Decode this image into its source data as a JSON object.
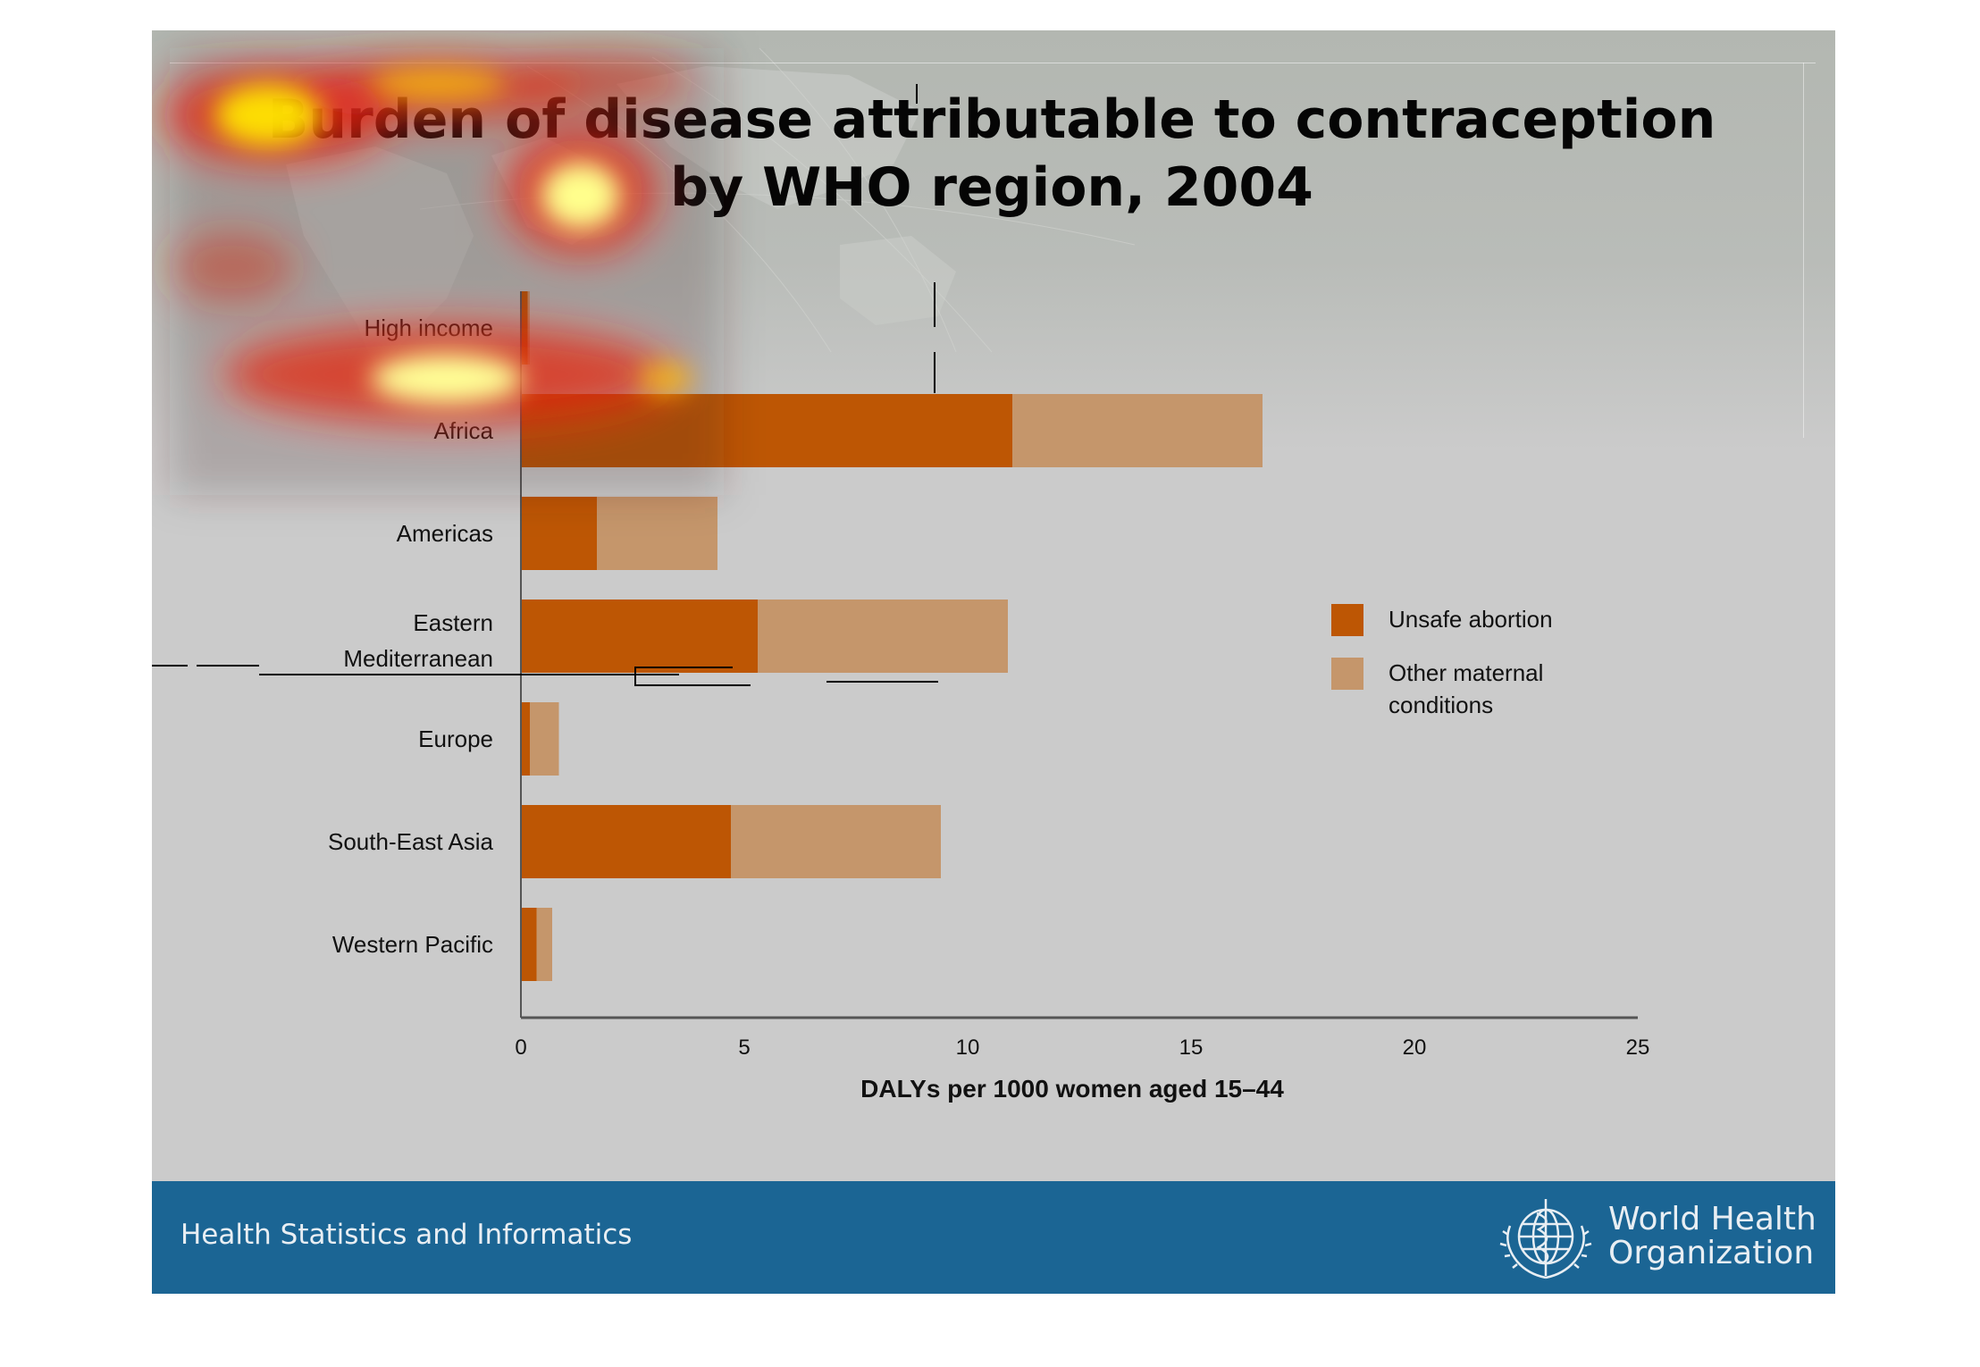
{
  "title": "Burden of disease attributable to contraception by WHO region, 2004",
  "footer": {
    "left_text": "Health Statistics and Informatics",
    "org_line1": "World Health",
    "org_line2": "Organization"
  },
  "colors": {
    "unsafe_abortion": "#bd5604",
    "other_maternal": "#c5966b",
    "footer_band": "#1b6594"
  },
  "chart_data": {
    "type": "bar",
    "orientation": "horizontal",
    "stacked": true,
    "categories": [
      "High income",
      "Africa",
      "Americas",
      "Eastern Mediterranean",
      "Europe",
      "South-East Asia",
      "Western Pacific"
    ],
    "series": [
      {
        "name": "Unsafe abortion",
        "values": [
          0.15,
          11.0,
          1.7,
          5.3,
          0.2,
          4.7,
          0.35
        ]
      },
      {
        "name": "Other maternal conditions",
        "values": [
          0.05,
          5.6,
          2.7,
          5.6,
          0.65,
          4.7,
          0.35
        ]
      }
    ],
    "xlabel": "DALYs per 1000 women aged 15–44",
    "ylabel": "",
    "xlim": [
      0,
      25
    ],
    "xticks": [
      "0",
      "5",
      "10",
      "15",
      "20",
      "25"
    ],
    "grid": false,
    "legend": "right"
  }
}
